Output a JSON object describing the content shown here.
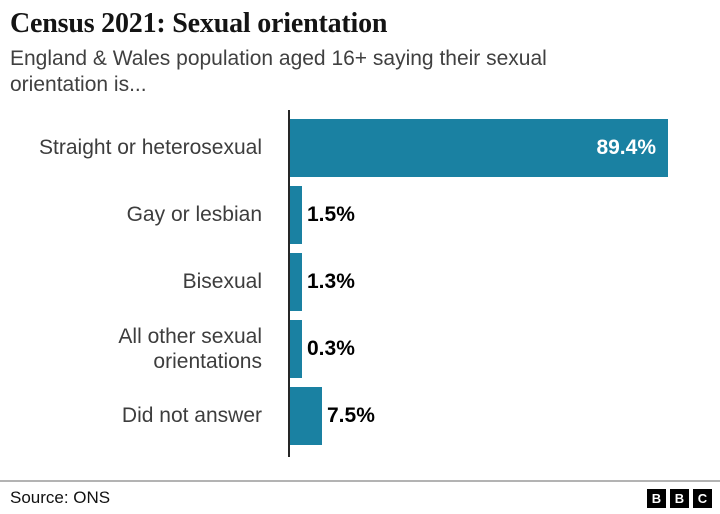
{
  "header": {
    "title": "Census 2021: Sexual orientation",
    "subtitle": "England & Wales population aged 16+ saying their sexual\norientation is..."
  },
  "chart_data": {
    "type": "bar",
    "orientation": "horizontal",
    "title": "Census 2021: Sexual orientation",
    "subtitle": "England & Wales population aged 16+ saying their sexual orientation is...",
    "categories": [
      "Straight or heterosexual",
      "Gay or lesbian",
      "Bisexual",
      "All other sexual\norientations",
      "Did not answer"
    ],
    "values": [
      89.4,
      1.5,
      1.3,
      0.3,
      7.5
    ],
    "value_labels": [
      "89.4%",
      "1.5%",
      "1.3%",
      "0.3%",
      "7.5%"
    ],
    "unit": "%",
    "xlim": [
      0,
      100
    ],
    "xlabel": "",
    "ylabel": "",
    "grid": false,
    "legend": false,
    "bar_color": "#1a81a2",
    "axis_color": "#262626"
  },
  "footer": {
    "source": "Source: ONS",
    "logo_letters": [
      "B",
      "B",
      "C"
    ]
  },
  "colors": {
    "bar": "#1a81a2",
    "title_text": "#141414",
    "muted_text": "#404040",
    "divider": "#b3b3b3"
  }
}
